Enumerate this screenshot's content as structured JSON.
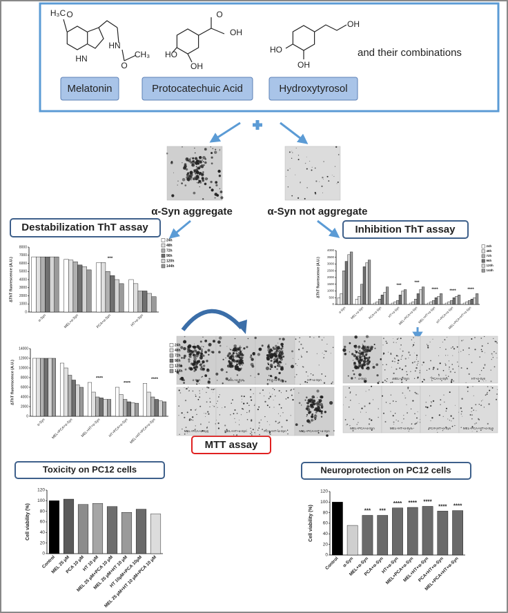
{
  "header": {
    "structures": [
      {
        "labels": [
          "H₃C",
          "O",
          "HN",
          "HN",
          "O",
          "CH₃"
        ]
      },
      {
        "labels": [
          "O",
          "OH",
          "HO",
          "OH"
        ]
      },
      {
        "labels": [
          "OH",
          "HO",
          "OH"
        ]
      }
    ],
    "compounds": [
      "Melatonin",
      "Protocatechuic Acid",
      "Hydroxytyrosol"
    ],
    "combinations": "and their combinations"
  },
  "aggregates": {
    "aggregate": "α-Syn aggregate",
    "not_aggregate": "α-Syn not aggregate"
  },
  "sections": {
    "destabilization": "Destabilization ThT assay",
    "inhibition": "Inhibition ThT assay",
    "mtt": "MTT assay",
    "toxicity": "Toxicity on PC12 cells",
    "neuroprotection": "Neuroprotection on PC12 cells"
  },
  "micrographs": {
    "destabilization": [
      "α-Syn",
      "MEL+α-Syn",
      "PCA+α-Syn",
      "HT+α-Syn",
      "MEL+PCA+α-Syn",
      "MEL+HT+α-Syn",
      "PCA+HT+α-Syn",
      "MEL+PCA+HT+α-Syn"
    ],
    "inhibition": [
      "α-Syn",
      "MEL+α-Syn",
      "PCA+α-Syn",
      "HT+α-Syn",
      "MEL+PCA+α-Syn",
      "MEL+HT+α-Syn",
      "PCA+HT+α-Syn",
      "MEL+PCA+HT+α-Syn"
    ]
  },
  "chart_data": [
    {
      "type": "bar",
      "ylabel": "ΔThT fluorescence (A.U.)",
      "categories": [
        "α-Syn",
        "MEL+α-Syn",
        "PCA+α-Syn",
        "HT+α-Syn"
      ],
      "series": [
        {
          "name": "24h",
          "color": "#ffffff",
          "values": [
            6800,
            6500,
            6100,
            4000
          ]
        },
        {
          "name": "48h",
          "color": "#e0e0e0",
          "values": [
            6800,
            6400,
            6100,
            3500
          ]
        },
        {
          "name": "72h",
          "color": "#b0b0b0",
          "values": [
            6800,
            6200,
            5000,
            2600
          ]
        },
        {
          "name": "96h",
          "color": "#707070",
          "values": [
            6800,
            5800,
            4500,
            2600
          ]
        },
        {
          "name": "120h",
          "color": "#d4d4d4",
          "values": [
            6800,
            5600,
            4000,
            2300
          ]
        },
        {
          "name": "144h",
          "color": "#9a9a9a",
          "values": [
            6800,
            5200,
            3500,
            1900
          ]
        }
      ],
      "annotations": [
        null,
        null,
        "***",
        null
      ],
      "ylim": [
        0,
        8000
      ],
      "yticks": [
        0,
        1000,
        2000,
        3000,
        4000,
        5000,
        6000,
        7000,
        8000
      ]
    },
    {
      "type": "bar",
      "ylabel": "ΔThT fluorescence (A.U.)",
      "categories": [
        "α-Syn",
        "MEL+PCA+α-Syn",
        "MEL+HT+α-Syn",
        "HT+PCA+α-Syn",
        "MEL+HT+PCA+α-Syn"
      ],
      "series": [
        {
          "name": "24h",
          "color": "#ffffff",
          "values": [
            12000,
            11000,
            7000,
            6000,
            6800
          ]
        },
        {
          "name": "48h",
          "color": "#e0e0e0",
          "values": [
            12000,
            10000,
            5000,
            4500,
            5000
          ]
        },
        {
          "name": "72h",
          "color": "#b0b0b0",
          "values": [
            12000,
            8500,
            4000,
            3500,
            4000
          ]
        },
        {
          "name": "96h",
          "color": "#707070",
          "values": [
            12000,
            7500,
            3800,
            3000,
            3500
          ]
        },
        {
          "name": "120h",
          "color": "#d4d4d4",
          "values": [
            12000,
            6500,
            3500,
            2800,
            3200
          ]
        },
        {
          "name": "144h",
          "color": "#9a9a9a",
          "values": [
            12000,
            6000,
            3500,
            2700,
            3000
          ]
        }
      ],
      "annotations": [
        null,
        null,
        "****",
        "****",
        "****"
      ],
      "ylim": [
        0,
        14000
      ],
      "yticks": [
        0,
        2000,
        4000,
        6000,
        8000,
        10000,
        12000,
        14000
      ]
    },
    {
      "type": "bar",
      "ylabel": "ΔThT fluorescence (A.U.)",
      "categories": [
        "α-Syn",
        "MEL+α-Syn",
        "PCA+α-Syn",
        "HT+α-Syn",
        "MEL+PCA+α-Syn",
        "MEL+HT+α-Syn",
        "HT+PCA+α-Syn",
        "MEL+PCA+HT+α-Syn"
      ],
      "series": [
        {
          "name": "24h",
          "color": "#ffffff",
          "values": [
            500,
            400,
            100,
            100,
            100,
            100,
            100,
            100
          ]
        },
        {
          "name": "48h",
          "color": "#e0e0e0",
          "values": [
            800,
            600,
            200,
            200,
            200,
            200,
            200,
            200
          ]
        },
        {
          "name": "72h",
          "color": "#b0b0b0",
          "values": [
            2500,
            1500,
            400,
            300,
            400,
            300,
            300,
            300
          ]
        },
        {
          "name": "96h",
          "color": "#707070",
          "values": [
            3200,
            2800,
            700,
            700,
            800,
            500,
            500,
            400
          ]
        },
        {
          "name": "120h",
          "color": "#d4d4d4",
          "values": [
            3700,
            3100,
            900,
            1000,
            1100,
            600,
            600,
            500
          ]
        },
        {
          "name": "144h",
          "color": "#9a9a9a",
          "values": [
            3900,
            3300,
            1300,
            1100,
            1300,
            800,
            700,
            800
          ]
        }
      ],
      "annotations": [
        null,
        null,
        null,
        "***",
        "***",
        "****",
        "****",
        "****"
      ],
      "ylim": [
        0,
        4000
      ],
      "yticks": [
        0,
        500,
        1000,
        1500,
        2000,
        2500,
        3000,
        3500,
        4000
      ]
    },
    {
      "type": "bar",
      "ylabel": "Cell viability (%)",
      "categories": [
        "Control",
        "MEL 25 µM",
        "PCA 10 µM",
        "HT 10 µM",
        "MEL 25 µM+PCA 10 µM",
        "MEL 25 µM+HT 10 µM",
        "HT 10µM+PCA 10µM",
        "MEL 25 µM+HT 10 µM+PCA 10 µM"
      ],
      "values": [
        100,
        103,
        93,
        95,
        89,
        78,
        84,
        75
      ],
      "colors": [
        "#000000",
        "#5a5a5a",
        "#8c8c8c",
        "#a6a6a6",
        "#6e6e6e",
        "#9a9a9a",
        "#6a6a6a",
        "#dcdcdc"
      ],
      "ylim": [
        0,
        120
      ],
      "yticks": [
        0,
        20,
        40,
        60,
        80,
        100,
        120
      ]
    },
    {
      "type": "bar",
      "ylabel": "Cell viability (%)",
      "categories": [
        "Control",
        "α-Syn",
        "MEL+α-Syn",
        "PCA+α-Syn",
        "HT+α-Syn",
        "MEL+PCA+α-Syn",
        "MEL+HT+α-Syn",
        "PCA+HT+α-Syn",
        "MEL+PCA+HT+α-Syn"
      ],
      "values": [
        100,
        56,
        75,
        75,
        89,
        90,
        92,
        83,
        84
      ],
      "colors": [
        "#000000",
        "#cfcfcf",
        "#6a6a6a",
        "#6a6a6a",
        "#6a6a6a",
        "#6a6a6a",
        "#6a6a6a",
        "#6a6a6a",
        "#6a6a6a"
      ],
      "annotations": [
        null,
        null,
        "***",
        "***",
        "****",
        "****",
        "****",
        "****",
        "****"
      ],
      "ylim": [
        0,
        120
      ],
      "yticks": [
        0,
        20,
        40,
        60,
        80,
        100,
        120
      ]
    }
  ]
}
